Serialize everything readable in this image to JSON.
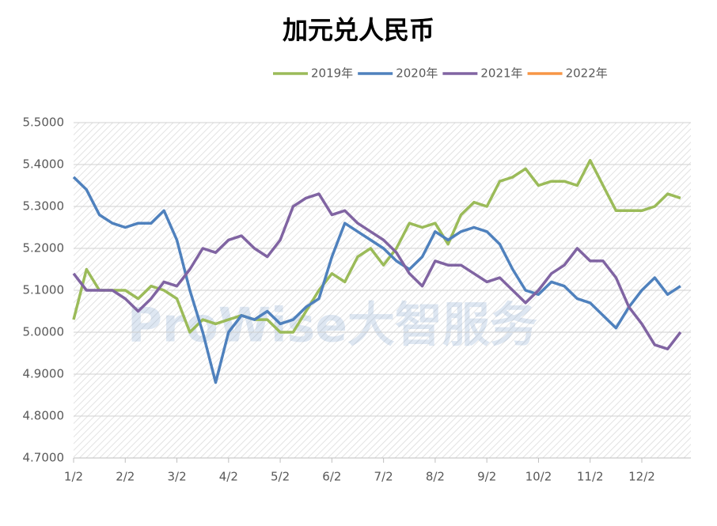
{
  "chart_data": {
    "type": "line",
    "title": "加元兑人民币",
    "watermark": "ProWise大智服务",
    "categories": [
      "1/2",
      null,
      null,
      null,
      "2/2",
      null,
      null,
      null,
      "3/2",
      null,
      null,
      null,
      "4/2",
      null,
      null,
      null,
      "5/2",
      null,
      null,
      null,
      "6/2",
      null,
      null,
      null,
      "7/2",
      null,
      null,
      null,
      "8/2",
      null,
      null,
      null,
      "9/2",
      null,
      null,
      null,
      "10/2",
      null,
      null,
      null,
      "11/2",
      null,
      null,
      null,
      "12/2",
      null,
      null,
      null
    ],
    "series": [
      {
        "name": "2019年",
        "color": "#9bbb59",
        "values": [
          5.03,
          5.15,
          5.1,
          5.1,
          5.1,
          5.08,
          5.11,
          5.1,
          5.08,
          5.0,
          5.03,
          5.02,
          5.03,
          5.04,
          5.03,
          5.03,
          5.0,
          5.0,
          5.05,
          5.1,
          5.14,
          5.12,
          5.18,
          5.2,
          5.16,
          5.2,
          5.26,
          5.25,
          5.26,
          5.21,
          5.28,
          5.31,
          5.3,
          5.36,
          5.37,
          5.39,
          5.35,
          5.36,
          5.36,
          5.35,
          5.41,
          5.35,
          5.29,
          5.29,
          5.29,
          5.3,
          5.33,
          5.32
        ]
      },
      {
        "name": "2020年",
        "color": "#4f81bd",
        "values": [
          5.37,
          5.34,
          5.28,
          5.26,
          5.25,
          5.26,
          5.26,
          5.29,
          5.22,
          5.1,
          5.0,
          4.88,
          5.0,
          5.04,
          5.03,
          5.05,
          5.02,
          5.03,
          5.06,
          5.08,
          5.18,
          5.26,
          5.24,
          5.22,
          5.2,
          5.17,
          5.15,
          5.18,
          5.24,
          5.22,
          5.24,
          5.25,
          5.24,
          5.21,
          5.15,
          5.1,
          5.09,
          5.12,
          5.11,
          5.08,
          5.07,
          5.04,
          5.01,
          5.06,
          5.1,
          5.13,
          5.09,
          5.11
        ]
      },
      {
        "name": "2021年",
        "color": "#8064a2",
        "values": [
          5.14,
          5.1,
          5.1,
          5.1,
          5.08,
          5.05,
          5.08,
          5.12,
          5.11,
          5.15,
          5.2,
          5.19,
          5.22,
          5.23,
          5.2,
          5.18,
          5.22,
          5.3,
          5.32,
          5.33,
          5.28,
          5.29,
          5.26,
          5.24,
          5.22,
          5.19,
          5.14,
          5.11,
          5.17,
          5.16,
          5.16,
          5.14,
          5.12,
          5.13,
          5.1,
          5.07,
          5.1,
          5.14,
          5.16,
          5.2,
          5.17,
          5.17,
          5.13,
          5.06,
          5.02,
          4.97,
          4.96,
          5.0
        ]
      },
      {
        "name": "2022年",
        "color": "#f79646",
        "values": [
          null,
          null,
          null,
          null,
          null,
          null,
          null,
          null,
          null,
          null,
          null,
          null,
          null,
          null,
          null,
          null,
          null,
          null,
          null,
          null,
          null,
          null,
          null,
          null,
          null,
          null,
          null,
          null,
          null,
          null,
          null,
          null,
          null,
          null,
          null,
          null,
          null,
          null,
          null,
          null,
          null,
          null,
          null,
          null,
          null,
          null,
          null,
          null
        ]
      }
    ],
    "ylim": [
      4.7,
      5.5
    ],
    "yticks": [
      {
        "value": 4.7,
        "label": "4.7000"
      },
      {
        "value": 4.8,
        "label": "4.8000"
      },
      {
        "value": 4.9,
        "label": "4.9000"
      },
      {
        "value": 5.0,
        "label": "5.0000"
      },
      {
        "value": 5.1,
        "label": "5.1000"
      },
      {
        "value": 5.2,
        "label": "5.2000"
      },
      {
        "value": 5.3,
        "label": "5.3000"
      },
      {
        "value": 5.4,
        "label": "5.4000"
      },
      {
        "value": 5.5,
        "label": "5.5000"
      }
    ],
    "grid": true,
    "legend": "top"
  }
}
